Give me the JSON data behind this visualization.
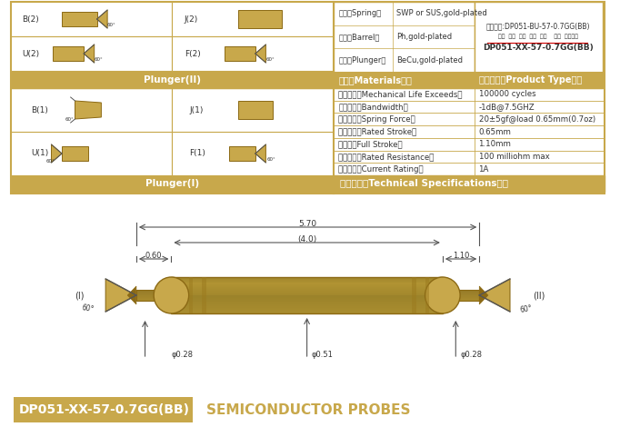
{
  "title_bg_color": "#C8A84B",
  "title_text": "DP051-XX-57-0.7GG(BB)",
  "title_subtitle": "SEMICONDUCTOR PROBES",
  "gold_color": "#C8A84B",
  "gold_light": "#D4AF37",
  "gold_dark": "#B8963E",
  "border_color": "#C8A84B",
  "text_dark": "#333333",
  "bg_white": "#FFFFFF",
  "header_bg": "#C8A84B",
  "specs": [
    [
      "额定电流（Current Rating）",
      "1A"
    ],
    [
      "额定电阻（Rated Resistance）",
      "100 milliohm max"
    ],
    [
      "满行程（Full Stroke）",
      "1.10mm"
    ],
    [
      "额定行程（Rated Stroke）",
      "0.65mm"
    ],
    [
      "额定弹力（Spring Force）",
      "20±5gf@load 0.65mm(0.7oz)"
    ],
    [
      "频率带宽（Bandwidth）",
      "-1dB@7.5GHZ"
    ],
    [
      "测试寿命（Mechanical Life Exceeds）",
      "100000 cycles"
    ]
  ],
  "materials": [
    [
      "针头（Plunger）",
      "BeCu,gold-plated"
    ],
    [
      "针管（Barrel）",
      "Ph,gold-plated"
    ],
    [
      "弹簧（Spring）",
      "SWP or SUS,gold-plated"
    ]
  ],
  "dim_phi051": "φ0.51",
  "dim_phi028a": "φ0.28",
  "dim_phi028b": "φ0.28",
  "dim_060": "0.60",
  "dim_40": "(4.0)",
  "dim_110": "1.10",
  "dim_570": "5.70",
  "label_I": "(I)",
  "label_II": "(II)",
  "label_60a": "60°",
  "label_60b": "60°",
  "product_type_title": "成品型号（Product Type）：",
  "product_code": "DP051-XX-57-0.7GG(BB)",
  "product_labels": "系列  规格  头型  归长  弹力    镀金  针头材质",
  "order_example": "订购举例:DP051-BU-57-0.7GG(BB)",
  "materials_title": "材质（Materials）：",
  "plunger1_title": "Plunger(I)",
  "plunger2_title": "Plunger(II)",
  "tech_title": "技术要求（Technical Specifications）："
}
